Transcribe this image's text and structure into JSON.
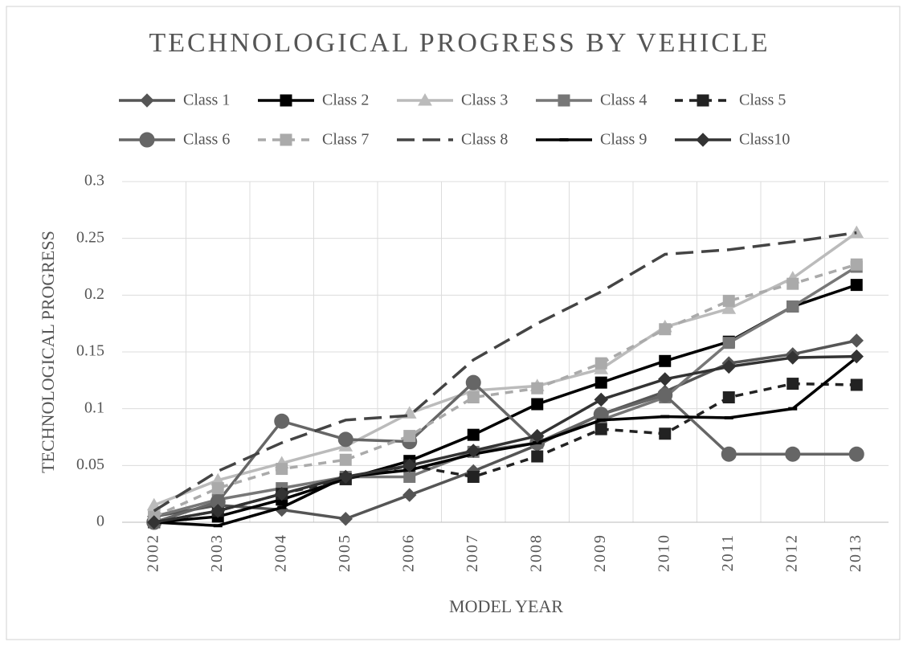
{
  "chart_data": {
    "type": "line",
    "title": "TECHNOLOGICAL PROGRESS BY VEHICLE",
    "x_label": "MODEL YEAR",
    "y_label": "TECHNOLOGICAL PROGRESS",
    "categories": [
      "2002",
      "2003",
      "2004",
      "2005",
      "2006",
      "2007",
      "2008",
      "2009",
      "2010",
      "2011",
      "2012",
      "2013"
    ],
    "ylim": [
      0,
      0.3
    ],
    "yticks": [
      0,
      0.05,
      0.1,
      0.15,
      0.2,
      0.25,
      0.3
    ],
    "grid": true,
    "series": [
      {
        "name": "Class 1",
        "color": "#555555",
        "marker": "diamond",
        "dash": "solid",
        "values": [
          0.005,
          0.015,
          0.011,
          0.003,
          0.024,
          0.045,
          0.068,
          0.095,
          0.115,
          0.14,
          0.148,
          0.16
        ]
      },
      {
        "name": "Class 2",
        "color": "#000000",
        "marker": "square",
        "dash": "solid",
        "values": [
          0,
          0.005,
          0.02,
          0.038,
          0.054,
          0.077,
          0.104,
          0.123,
          0.142,
          0.159,
          0.19,
          0.209
        ]
      },
      {
        "name": "Class 3",
        "color": "#bbbbbb",
        "marker": "triangle",
        "dash": "solid",
        "values": [
          0.015,
          0.037,
          0.052,
          0.067,
          0.096,
          0.116,
          0.12,
          0.135,
          0.172,
          0.188,
          0.215,
          0.255
        ]
      },
      {
        "name": "Class 4",
        "color": "#777777",
        "marker": "square",
        "dash": "solid",
        "values": [
          0.005,
          0.02,
          0.03,
          0.04,
          0.04,
          0.062,
          0.07,
          0.09,
          0.11,
          0.158,
          0.19,
          0.225
        ]
      },
      {
        "name": "Class 5",
        "color": "#222222",
        "marker": "square",
        "dash": "short",
        "values": [
          0,
          0.01,
          0.025,
          0.038,
          0.05,
          0.04,
          0.058,
          0.082,
          0.078,
          0.11,
          0.122,
          0.121
        ]
      },
      {
        "name": "Class 6",
        "color": "#666666",
        "marker": "circle",
        "dash": "solid",
        "values": [
          0,
          0.018,
          0.089,
          0.073,
          0.071,
          0.123,
          0.07,
          0.095,
          0.112,
          0.06,
          0.06,
          0.06
        ]
      },
      {
        "name": "Class 7",
        "color": "#aaaaaa",
        "marker": "square",
        "dash": "short",
        "values": [
          0.005,
          0.03,
          0.047,
          0.055,
          0.076,
          0.11,
          0.118,
          0.14,
          0.17,
          0.195,
          0.21,
          0.227
        ]
      },
      {
        "name": "Class 8",
        "color": "#444444",
        "marker": "none",
        "dash": "long",
        "values": [
          0.01,
          0.045,
          0.07,
          0.09,
          0.094,
          0.143,
          0.175,
          0.203,
          0.236,
          0.24,
          0.247,
          0.255
        ]
      },
      {
        "name": "Class 9",
        "color": "#000000",
        "marker": "dash",
        "dash": "solid",
        "values": [
          0,
          -0.003,
          0.013,
          0.04,
          0.046,
          0.06,
          0.07,
          0.09,
          0.093,
          0.092,
          0.1,
          0.145
        ]
      },
      {
        "name": "Class10",
        "color": "#333333",
        "marker": "diamond",
        "dash": "solid",
        "values": [
          0,
          0.01,
          0.025,
          0.04,
          0.05,
          0.063,
          0.076,
          0.108,
          0.126,
          0.137,
          0.145,
          0.146
        ]
      }
    ]
  }
}
